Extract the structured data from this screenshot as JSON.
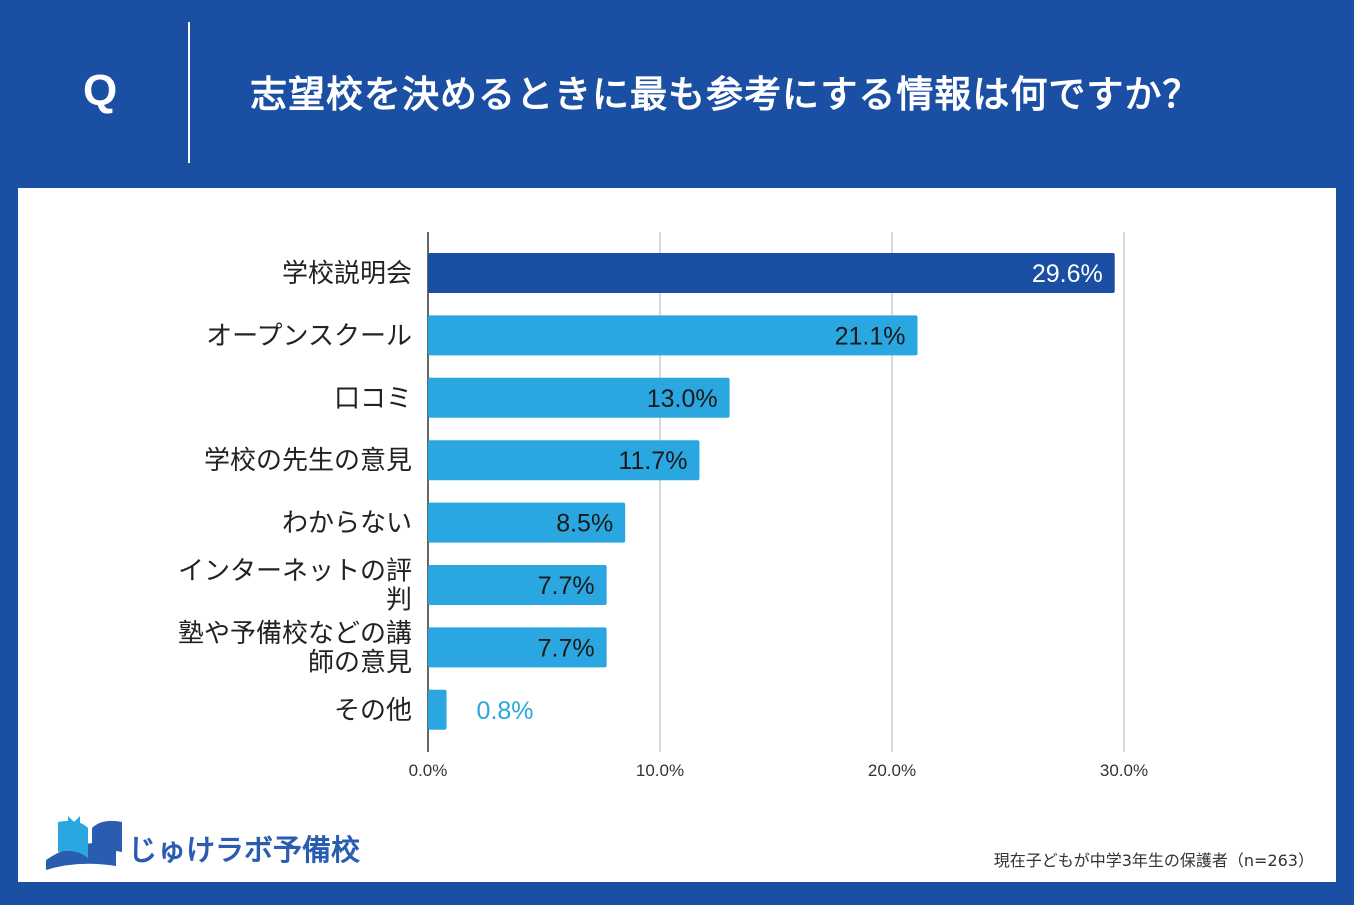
{
  "header": {
    "q_mark": "Q",
    "question": "志望校を決めるときに最も参考にする情報は何ですか？"
  },
  "colors": {
    "background": "#1a4fa3",
    "highlight_bar": "#1a4fa3",
    "bar": "#2aa7e0",
    "grid": "#cccccc"
  },
  "chart_data": {
    "type": "bar",
    "orientation": "horizontal",
    "title": "志望校を決めるときに最も参考にする情報は何ですか？",
    "categories": [
      [
        "学校説明会"
      ],
      [
        "オープンスクール"
      ],
      [
        "口コミ"
      ],
      [
        "学校の先生の意見"
      ],
      [
        "わからない"
      ],
      [
        "インターネットの評",
        "判"
      ],
      [
        "塾や予備校などの講",
        "師の意見"
      ],
      [
        "その他"
      ]
    ],
    "values": [
      29.6,
      21.1,
      13.0,
      11.7,
      8.5,
      7.7,
      7.7,
      0.8
    ],
    "value_labels": [
      "29.6%",
      "21.1%",
      "13.0%",
      "11.7%",
      "8.5%",
      "7.7%",
      "7.7%",
      "0.8%"
    ],
    "highlight_index": 0,
    "xlim": [
      0,
      30
    ],
    "x_ticks": [
      0,
      10,
      20,
      30
    ],
    "x_tick_labels": [
      "0.0%",
      "10.0%",
      "20.0%",
      "30.0%"
    ],
    "grid": true,
    "xlabel": "",
    "ylabel": ""
  },
  "logo": {
    "text": "じゅけラボ予備校",
    "icon": "open-book-icon"
  },
  "footer": {
    "source_note": "現在子どもが中学3年生の保護者（n=263）"
  }
}
